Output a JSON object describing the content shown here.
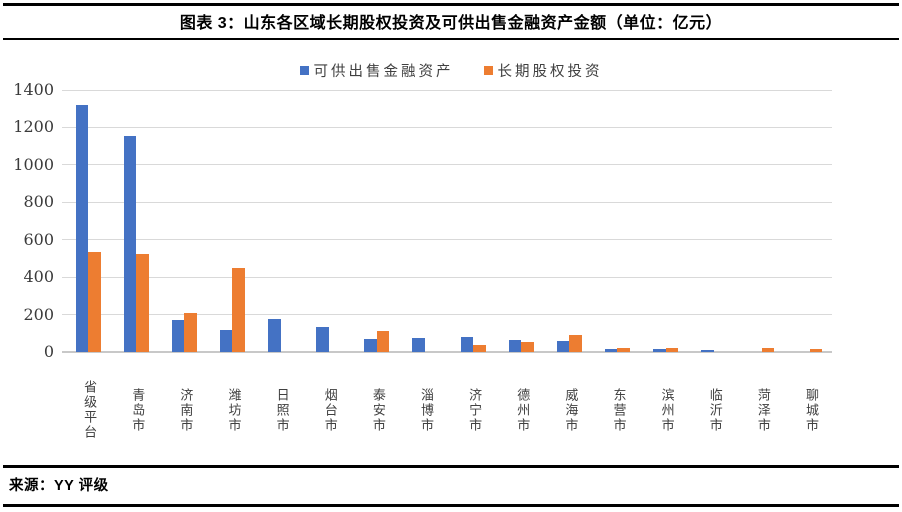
{
  "header": {
    "title": "图表 3：山东各区域长期股权投资及可供出售金融资产金额（单位：亿元）"
  },
  "footer": {
    "source": "来源：YY 评级"
  },
  "colors": {
    "series_blue": "#4472C4",
    "series_orange": "#ED7D31",
    "gridline": "#D9D9D9",
    "axis_text": "#404040",
    "rule": "#000000"
  },
  "chart_data": {
    "type": "bar",
    "title": "图表 3：山东各区域长期股权投资及可供出售金融资产金额（单位：亿元）",
    "xlabel": "",
    "ylabel": "",
    "unit": "亿元",
    "grid": true,
    "legend_position": "top",
    "ylim": [
      0,
      1400
    ],
    "yticks": [
      0,
      200,
      400,
      600,
      800,
      1000,
      1200,
      1400
    ],
    "categories": [
      "省级平台",
      "青岛市",
      "济南市",
      "潍坊市",
      "日照市",
      "烟台市",
      "泰安市",
      "淄博市",
      "济宁市",
      "德州市",
      "威海市",
      "东营市",
      "滨州市",
      "临沂市",
      "菏泽市",
      "聊城市"
    ],
    "series": [
      {
        "name": "可供出售金融资产",
        "color": "#4472C4",
        "values": [
          1320,
          1155,
          170,
          120,
          175,
          135,
          68,
          76,
          78,
          64,
          58,
          15,
          14,
          9,
          0,
          0
        ]
      },
      {
        "name": "长期股权投资",
        "color": "#ED7D31",
        "values": [
          534,
          525,
          210,
          450,
          0,
          0,
          110,
          0,
          36,
          55,
          92,
          21,
          20,
          0,
          23,
          15
        ]
      }
    ]
  }
}
